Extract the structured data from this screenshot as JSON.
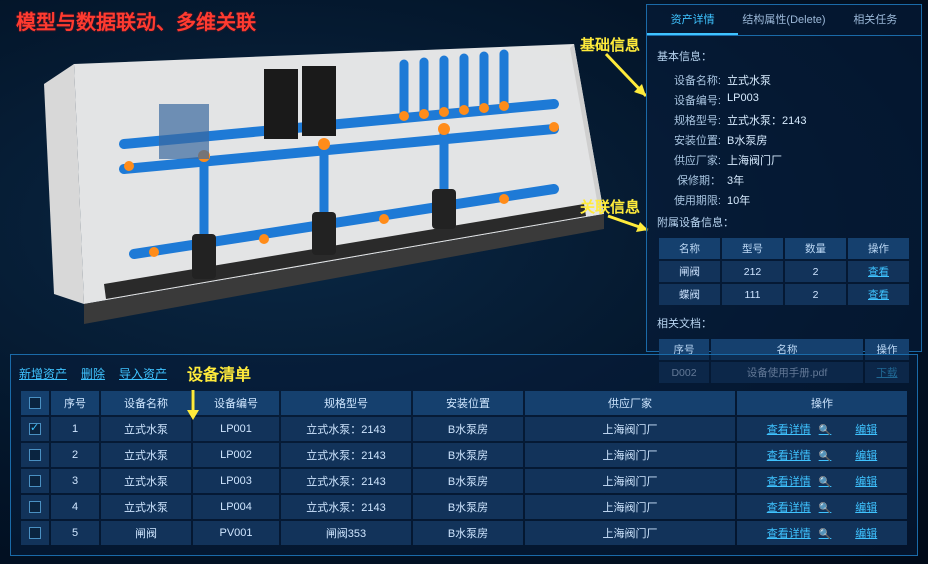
{
  "title": "模型与数据联动、多维关联",
  "annotations": {
    "basic_info": "基础信息",
    "relation_info": "关联信息",
    "device_list": "设备清单"
  },
  "panel": {
    "tabs": [
      "资产详情",
      "结构属性(Delete)",
      "相关任务"
    ],
    "active_tab": 0,
    "section_basic": "基本信息：",
    "fields": [
      {
        "label": "设备名称:",
        "value": "立式水泵"
      },
      {
        "label": "设备编号:",
        "value": "LP003"
      },
      {
        "label": "规格型号:",
        "value": "立式水泵：2143"
      },
      {
        "label": "安装位置:",
        "value": "B水泵房"
      },
      {
        "label": "供应厂家:",
        "value": "上海阀门厂"
      },
      {
        "label": "保修期：",
        "value": "3年"
      },
      {
        "label": "使用期限:",
        "value": "10年"
      }
    ],
    "section_parts": "附属设备信息：",
    "parts_headers": [
      "名称",
      "型号",
      "数量",
      "操作"
    ],
    "parts": [
      {
        "name": "闸阀",
        "model": "212",
        "qty": "2",
        "action": "查看"
      },
      {
        "name": "蝶阀",
        "model": "111",
        "qty": "2",
        "action": "查看"
      }
    ],
    "section_docs": "相关文档：",
    "docs_headers": [
      "序号",
      "名称",
      "操作"
    ],
    "docs": [
      {
        "seq": "D002",
        "name": "设备使用手册.pdf",
        "action": "下载"
      }
    ]
  },
  "list": {
    "actions": [
      "新增资产",
      "删除",
      "导入资产"
    ],
    "headers": [
      "",
      "序号",
      "设备名称",
      "设备编号",
      "规格型号",
      "安装位置",
      "供应厂家",
      "操作"
    ],
    "view_label": "查看详情",
    "edit_label": "编辑",
    "rows": [
      {
        "checked": true,
        "seq": "1",
        "name": "立式水泵",
        "code": "LP001",
        "spec": "立式水泵：2143",
        "loc": "B水泵房",
        "vendor": "上海阀门厂"
      },
      {
        "checked": false,
        "seq": "2",
        "name": "立式水泵",
        "code": "LP002",
        "spec": "立式水泵：2143",
        "loc": "B水泵房",
        "vendor": "上海阀门厂"
      },
      {
        "checked": false,
        "seq": "3",
        "name": "立式水泵",
        "code": "LP003",
        "spec": "立式水泵：2143",
        "loc": "B水泵房",
        "vendor": "上海阀门厂"
      },
      {
        "checked": false,
        "seq": "4",
        "name": "立式水泵",
        "code": "LP004",
        "spec": "立式水泵：2143",
        "loc": "B水泵房",
        "vendor": "上海阀门厂"
      },
      {
        "checked": false,
        "seq": "5",
        "name": "闸阀",
        "code": "PV001",
        "spec": "闸阀353",
        "loc": "B水泵房",
        "vendor": "上海阀门厂"
      }
    ]
  },
  "colors": {
    "pipe": "#1e7ad6",
    "joint": "#ff8c1a",
    "wall": "#f2f2f2",
    "floor": "#4a4a4a",
    "equipment": "#2a2a2a"
  }
}
